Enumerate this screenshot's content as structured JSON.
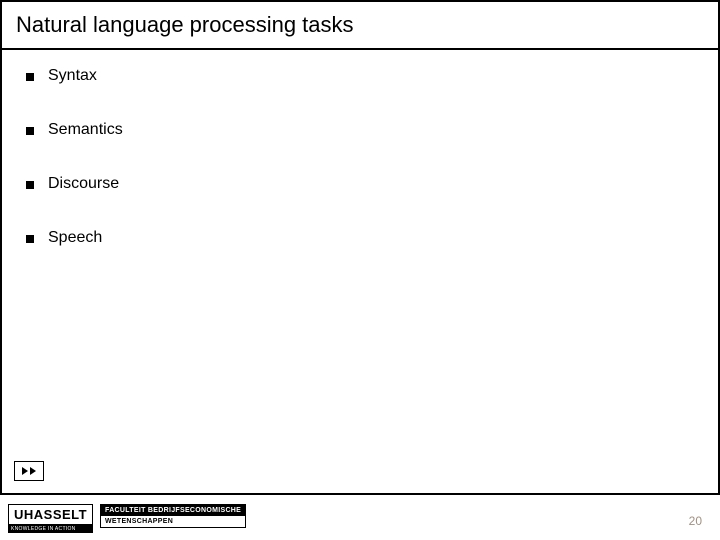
{
  "title": "Natural language processing tasks",
  "bullets": [
    "Syntax",
    "Semantics",
    "Discourse",
    "Speech"
  ],
  "logo": {
    "name": "UHASSELT",
    "tagline": "KNOWLEDGE IN ACTION"
  },
  "faculty": {
    "line1": "FACULTEIT BEDRIJFSECONOMISCHE",
    "line2": "WETENSCHAPPEN"
  },
  "page_number": "20",
  "colors": {
    "border": "#000000",
    "text": "#000000",
    "background": "#ffffff",
    "page_num": "#a19080"
  }
}
